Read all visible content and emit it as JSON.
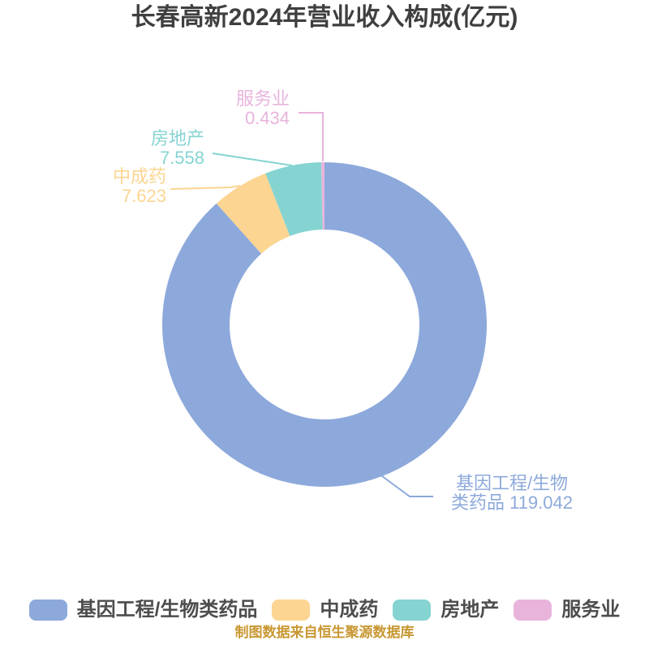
{
  "title": "长春高新2024年营业收入构成(亿元)",
  "footer": "制图数据来自恒生聚源数据库",
  "chart_data": {
    "type": "pie",
    "subtype": "donut",
    "title": "长春高新2024年营业收入构成(亿元)",
    "unit": "亿元",
    "start_angle": "12-oclock-clockwise",
    "inner_radius_ratio": 0.585,
    "legend_position": "bottom",
    "series": [
      {
        "name": "基因工程/生物类药品",
        "value": 119.042,
        "color": "#8da9db"
      },
      {
        "name": "中成药",
        "value": 7.623,
        "color": "#fcd592"
      },
      {
        "name": "房地产",
        "value": 7.558,
        "color": "#85d4d2"
      },
      {
        "name": "服务业",
        "value": 0.434,
        "color": "#e8b4dc"
      }
    ]
  },
  "callouts": [
    {
      "series_index": 3,
      "lines": [
        "服务业",
        "0.434"
      ]
    },
    {
      "series_index": 2,
      "lines": [
        "房地产",
        "7.558"
      ]
    },
    {
      "series_index": 1,
      "lines": [
        "中成药",
        "7.623"
      ]
    },
    {
      "series_index": 0,
      "lines": [
        "基因工程/生物",
        "类药品 119.042"
      ]
    }
  ],
  "legend": {
    "items": [
      {
        "label": "基因工程/生物类药品",
        "series_index": 0
      },
      {
        "label": "中成药",
        "series_index": 1
      },
      {
        "label": "房地产",
        "series_index": 2
      },
      {
        "label": "服务业",
        "series_index": 3
      }
    ]
  }
}
